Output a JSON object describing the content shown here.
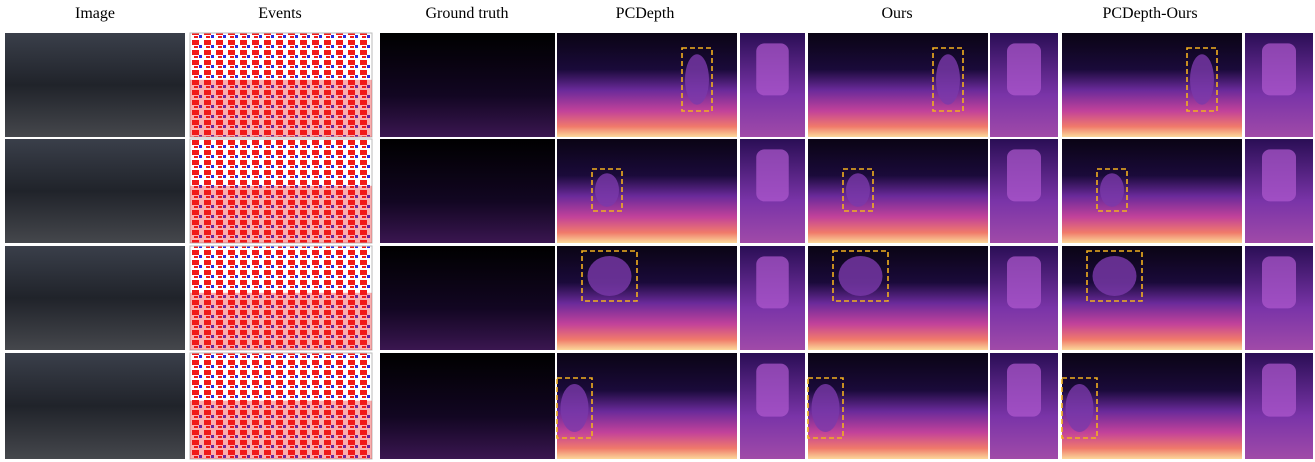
{
  "headers": [
    "Image",
    "Events",
    "Ground truth",
    "PCDepth",
    "Ours",
    "PCDepth-Ours"
  ]
}
